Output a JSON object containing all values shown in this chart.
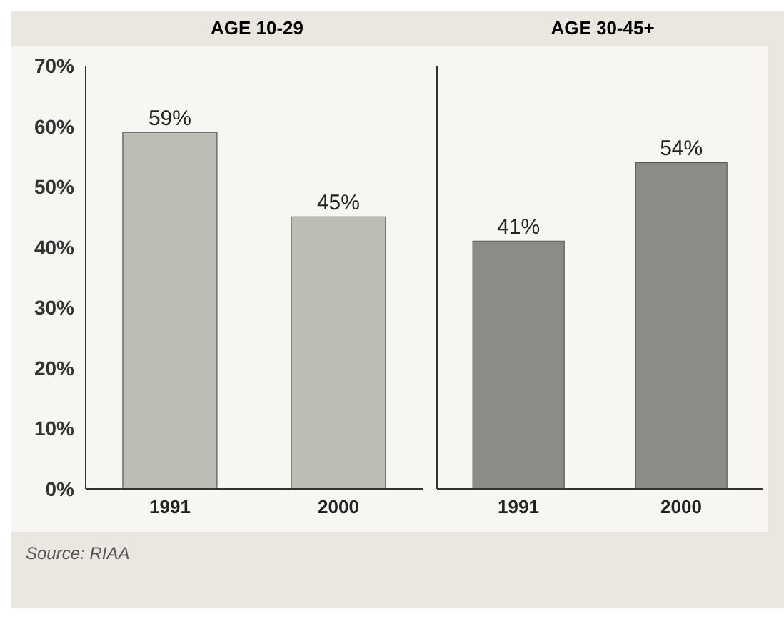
{
  "chart_data": [
    {
      "type": "bar",
      "title": "AGE 10-29",
      "categories": [
        "1991",
        "2000"
      ],
      "values": [
        59,
        45
      ],
      "color": "#bdbdb5",
      "value_labels": [
        "59%",
        "45%"
      ],
      "ylim": [
        0,
        70
      ],
      "yticks": [
        {
          "value": 0,
          "label": "0%"
        },
        {
          "value": 10,
          "label": "10%"
        },
        {
          "value": 20,
          "label": "20%"
        },
        {
          "value": 30,
          "label": "30%"
        },
        {
          "value": 40,
          "label": "40%"
        },
        {
          "value": 50,
          "label": "50%"
        },
        {
          "value": 60,
          "label": "60%"
        },
        {
          "value": 70,
          "label": "70%"
        }
      ],
      "annotations": [
        "Source: RIAA"
      ]
    },
    {
      "type": "bar",
      "title": "AGE 30-45+",
      "categories": [
        "1991",
        "2000"
      ],
      "values": [
        41,
        54
      ],
      "color": "#8c8c86",
      "value_labels": [
        "41%",
        "54%"
      ],
      "ylim": [
        0,
        70
      ],
      "yticks": [
        {
          "value": 0,
          "label": null
        },
        {
          "value": 10,
          "label": null
        },
        {
          "value": 20,
          "label": null
        },
        {
          "value": 30,
          "label": null
        },
        {
          "value": 40,
          "label": null
        },
        {
          "value": 50,
          "label": null
        },
        {
          "value": 60,
          "label": null
        },
        {
          "value": 70,
          "label": null
        }
      ],
      "tick_labels": "x"
    }
  ]
}
